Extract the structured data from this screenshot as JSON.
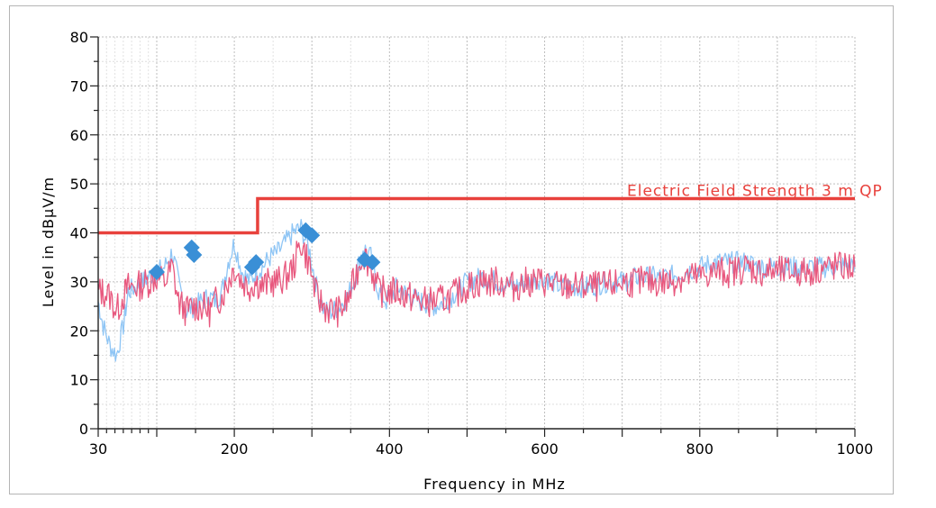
{
  "chart_data": {
    "type": "line",
    "xlabel": "Frequency in MHz",
    "ylabel": "Level in dBµV/m",
    "xlim": [
      30,
      1000
    ],
    "ylim": [
      0,
      80
    ],
    "x_tick_labels": [
      "30",
      "200",
      "400",
      "600",
      "800",
      "1000"
    ],
    "y_tick_labels": [
      "0",
      "10",
      "20",
      "30",
      "40",
      "50",
      "60",
      "70",
      "80"
    ],
    "grid": true,
    "colors": {
      "limit": "#e8413c",
      "vertical": "#e8587e",
      "horizontal": "#8ec5f5",
      "markers": "#3a8fd6"
    },
    "series": [
      {
        "role": "limit",
        "name": "Electric Field Strength 3 m QP",
        "x": [
          30,
          230,
          230,
          1000
        ],
        "y": [
          40,
          40,
          47,
          47
        ]
      },
      {
        "role": "trace-lightblue",
        "x": [
          30,
          36,
          44,
          52,
          60,
          66,
          76,
          90,
          100,
          110,
          120,
          128,
          138,
          148,
          158,
          168,
          176,
          184,
          192,
          200,
          210,
          220,
          228,
          236,
          246,
          256,
          266,
          276,
          286,
          296,
          306,
          316,
          326,
          336,
          346,
          356,
          366,
          376,
          386,
          396,
          410,
          425,
          440,
          460,
          480,
          500,
          520,
          540,
          560,
          580,
          600,
          620,
          640,
          660,
          680,
          700,
          720,
          740,
          760,
          780,
          800,
          820,
          840,
          860,
          880,
          900,
          920,
          940,
          960,
          980,
          1000
        ],
        "y": [
          26,
          21,
          17,
          15,
          21,
          28,
          29,
          31,
          32,
          33,
          36,
          30,
          24,
          25,
          26,
          27,
          26,
          28,
          34,
          38,
          32,
          30,
          32,
          33,
          35,
          36,
          38,
          40,
          41,
          37,
          29,
          24,
          24,
          25,
          27,
          31,
          37,
          35,
          28,
          26,
          29,
          27,
          26,
          25,
          27,
          30,
          31,
          30,
          29,
          30,
          31,
          29,
          29,
          29,
          30,
          30,
          31,
          31,
          31,
          32,
          33,
          34,
          34,
          34,
          33,
          33,
          33,
          33,
          33,
          33,
          34
        ]
      },
      {
        "role": "trace-pink",
        "x": [
          30,
          36,
          44,
          52,
          60,
          66,
          76,
          90,
          100,
          110,
          120,
          128,
          138,
          148,
          158,
          168,
          176,
          184,
          192,
          200,
          210,
          220,
          228,
          236,
          246,
          256,
          266,
          276,
          286,
          296,
          306,
          316,
          326,
          336,
          346,
          356,
          366,
          376,
          386,
          396,
          410,
          425,
          440,
          460,
          480,
          500,
          520,
          540,
          560,
          580,
          600,
          620,
          640,
          660,
          680,
          700,
          720,
          740,
          760,
          780,
          800,
          820,
          840,
          860,
          880,
          900,
          920,
          940,
          960,
          980,
          1000
        ],
        "y": [
          28,
          28,
          27,
          24,
          27,
          29,
          29,
          30,
          31,
          30,
          33,
          26,
          24,
          25,
          25,
          24,
          26,
          27,
          30,
          33,
          30,
          29,
          30,
          29,
          30,
          30,
          31,
          33,
          38,
          34,
          27,
          25,
          24,
          24,
          26,
          31,
          36,
          33,
          28,
          28,
          28,
          27,
          26,
          26,
          27,
          29,
          30,
          30,
          29,
          30,
          30,
          29,
          29,
          29,
          29,
          30,
          30,
          30,
          30,
          31,
          31,
          32,
          32,
          33,
          32,
          32,
          32,
          32,
          33,
          33,
          33
        ]
      },
      {
        "role": "quasi-peak markers",
        "x": [
          100,
          145,
          148,
          223,
          228,
          292,
          300,
          368,
          378
        ],
        "y": [
          32,
          37,
          35.5,
          33,
          34,
          40.5,
          39.5,
          34.5,
          34
        ]
      }
    ]
  }
}
